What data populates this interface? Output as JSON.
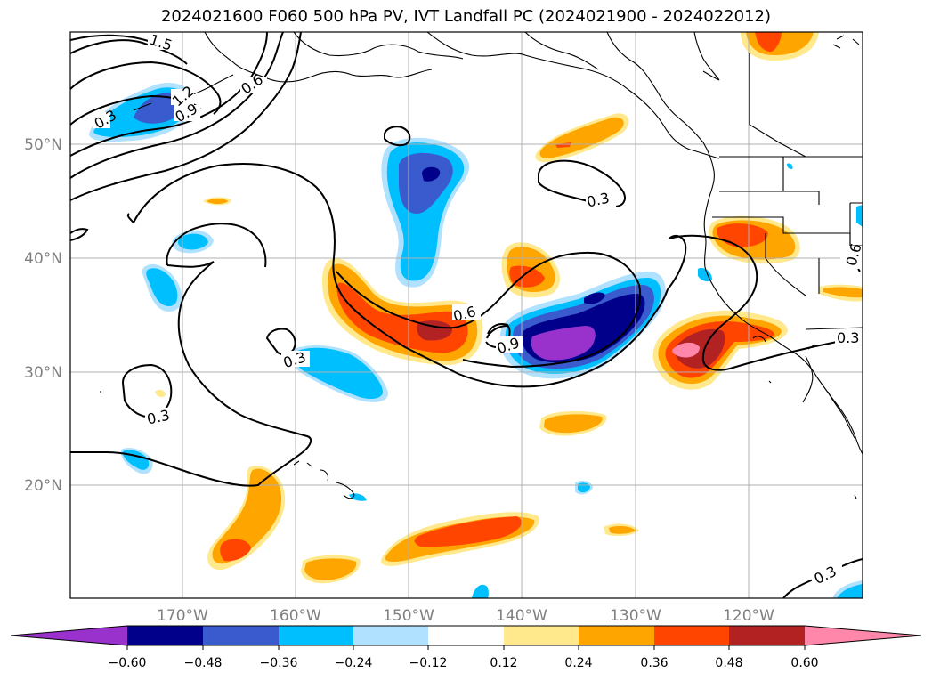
{
  "title": "2024021600 F060 500 hPa PV, IVT Landfall PC (2024021900 - 2024022012)",
  "lat_labels": [
    "50°N",
    "40°N",
    "30°N",
    "20°N"
  ],
  "lon_labels": [
    "170°W",
    "160°W",
    "150°W",
    "140°W",
    "130°W",
    "120°W"
  ],
  "contour_labels": [
    "1.5",
    "1.2",
    "0.9",
    "0.6",
    "0.3",
    "0.3",
    "0.3",
    "0.3",
    "0.6",
    "0.9",
    "0.3",
    "0.6",
    "0.3"
  ],
  "colorbar": {
    "ticks": [
      "−0.60",
      "−0.48",
      "−0.36",
      "−0.24",
      "−0.12",
      "0.12",
      "0.24",
      "0.36",
      "0.48",
      "0.60"
    ],
    "colors": [
      "#9932cc",
      "#00008b",
      "#3a5bcd",
      "#00bfff",
      "#b0e2ff",
      "#ffffff",
      "#ffe98c",
      "#ffa500",
      "#ff4500",
      "#b22222",
      "#ff88aa"
    ]
  },
  "colors": {
    "purple": "#9932cc",
    "navy": "#00008b",
    "royal": "#3a5bcd",
    "sky": "#00bfff",
    "pale_blue": "#b0e2ff",
    "pale_yellow": "#ffe98c",
    "orange": "#ffa500",
    "red_orange": "#ff4500",
    "firebrick": "#b22222",
    "pink": "#ff88aa"
  }
}
